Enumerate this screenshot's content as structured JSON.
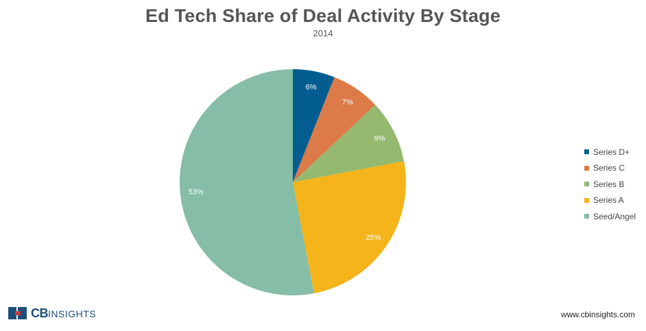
{
  "header": {
    "title": "Ed Tech Share of Deal Activity By Stage",
    "subtitle": "2014"
  },
  "chart_data": {
    "type": "pie",
    "title": "Ed Tech Share of Deal Activity By Stage",
    "subtitle": "2014",
    "start": "12 o'clock, clockwise",
    "legend_position": "right",
    "slices": [
      {
        "label": "Series D+",
        "value": 6,
        "display": "6%",
        "color": "#045d91"
      },
      {
        "label": "Series C",
        "value": 7,
        "display": "7%",
        "color": "#dc7b47"
      },
      {
        "label": "Series B",
        "value": 9,
        "display": "9%",
        "color": "#94b96f"
      },
      {
        "label": "Series A",
        "value": 25,
        "display": "25%",
        "color": "#f4b41a"
      },
      {
        "label": "Seed/Angel",
        "value": 53,
        "display": "53%",
        "color": "#85bda6"
      }
    ]
  },
  "footer": {
    "logo_primary": "CB",
    "logo_secondary": "INSIGHTS",
    "website": "www.cbinsights.com"
  },
  "colors": {
    "logo_blue": "#1f4e79",
    "logo_red": "#c9363b"
  }
}
